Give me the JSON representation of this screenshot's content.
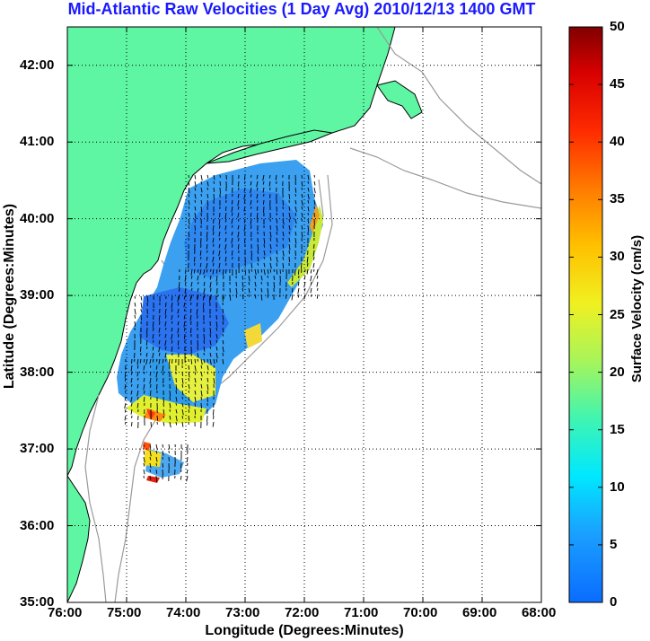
{
  "title": "Mid-Atlantic Raw Velocities (1 Day Avg) 2010/12/13 1400 GMT",
  "x_axis": {
    "label": "Longitude (Degrees:Minutes)",
    "ticks": [
      "76:00",
      "75:00",
      "74:00",
      "73:00",
      "72:00",
      "71:00",
      "70:00",
      "69:00",
      "68:00"
    ],
    "range": [
      -76,
      -68
    ]
  },
  "y_axis": {
    "label": "Latitude (Degrees:Minutes)",
    "ticks": [
      "42:00",
      "41:00",
      "40:00",
      "39:00",
      "38:00",
      "37:00",
      "36:00",
      "35:00"
    ],
    "range": [
      35,
      42.5
    ]
  },
  "colorbar": {
    "label": "Surface Velocity (cm/s)",
    "ticks": [
      "50",
      "45",
      "40",
      "35",
      "30",
      "25",
      "20",
      "15",
      "10",
      "5",
      "0"
    ],
    "range": [
      0,
      50
    ]
  },
  "colors": {
    "land": "#5ef5a3",
    "ocean": "#ffffff",
    "bathymetry": "#9a9a9a",
    "grid": "#000000",
    "title": "#1a1aff"
  },
  "grid": "dotted"
}
